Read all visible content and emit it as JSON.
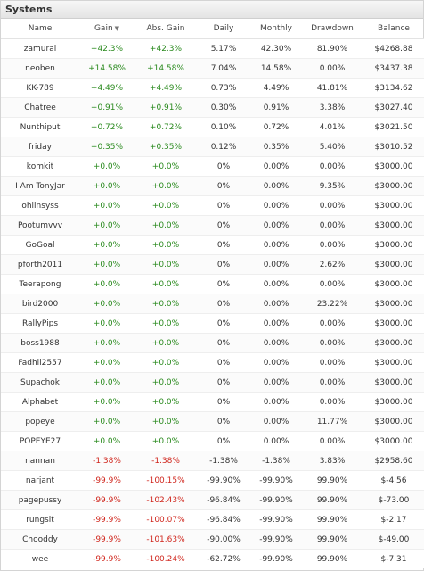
{
  "panel": {
    "title": "Systems"
  },
  "columns": {
    "name": "Name",
    "gain": "Gain",
    "abs_gain": "Abs. Gain",
    "daily": "Daily",
    "monthly": "Monthly",
    "drawdown": "Drawdown",
    "balance": "Balance"
  },
  "icons": {
    "sort": "sort-desc-triangle-icon"
  },
  "colors": {
    "positive": "#2a8a1e",
    "negative": "#d0261d",
    "neutral": "#333333"
  },
  "rows": [
    {
      "name": "zamurai",
      "gain": "+42.3%",
      "abs_gain": "+42.3%",
      "daily": "5.17%",
      "monthly": "42.30%",
      "drawdown": "81.90%",
      "balance": "$4268.88",
      "sign": "pos"
    },
    {
      "name": "neoben",
      "gain": "+14.58%",
      "abs_gain": "+14.58%",
      "daily": "7.04%",
      "monthly": "14.58%",
      "drawdown": "0.00%",
      "balance": "$3437.38",
      "sign": "pos"
    },
    {
      "name": "KK-789",
      "gain": "+4.49%",
      "abs_gain": "+4.49%",
      "daily": "0.73%",
      "monthly": "4.49%",
      "drawdown": "41.81%",
      "balance": "$3134.62",
      "sign": "pos"
    },
    {
      "name": "Chatree",
      "gain": "+0.91%",
      "abs_gain": "+0.91%",
      "daily": "0.30%",
      "monthly": "0.91%",
      "drawdown": "3.38%",
      "balance": "$3027.40",
      "sign": "pos"
    },
    {
      "name": "Nunthiput",
      "gain": "+0.72%",
      "abs_gain": "+0.72%",
      "daily": "0.10%",
      "monthly": "0.72%",
      "drawdown": "4.01%",
      "balance": "$3021.50",
      "sign": "pos"
    },
    {
      "name": "friday",
      "gain": "+0.35%",
      "abs_gain": "+0.35%",
      "daily": "0.12%",
      "monthly": "0.35%",
      "drawdown": "5.40%",
      "balance": "$3010.52",
      "sign": "pos"
    },
    {
      "name": "komkit",
      "gain": "+0.0%",
      "abs_gain": "+0.0%",
      "daily": "0%",
      "monthly": "0.00%",
      "drawdown": "0.00%",
      "balance": "$3000.00",
      "sign": "pos"
    },
    {
      "name": "I Am TonyJar",
      "gain": "+0.0%",
      "abs_gain": "+0.0%",
      "daily": "0%",
      "monthly": "0.00%",
      "drawdown": "9.35%",
      "balance": "$3000.00",
      "sign": "pos"
    },
    {
      "name": "ohlinsyss",
      "gain": "+0.0%",
      "abs_gain": "+0.0%",
      "daily": "0%",
      "monthly": "0.00%",
      "drawdown": "0.00%",
      "balance": "$3000.00",
      "sign": "pos"
    },
    {
      "name": "Pootumvvv",
      "gain": "+0.0%",
      "abs_gain": "+0.0%",
      "daily": "0%",
      "monthly": "0.00%",
      "drawdown": "0.00%",
      "balance": "$3000.00",
      "sign": "pos"
    },
    {
      "name": "GoGoal",
      "gain": "+0.0%",
      "abs_gain": "+0.0%",
      "daily": "0%",
      "monthly": "0.00%",
      "drawdown": "0.00%",
      "balance": "$3000.00",
      "sign": "pos"
    },
    {
      "name": "pforth2011",
      "gain": "+0.0%",
      "abs_gain": "+0.0%",
      "daily": "0%",
      "monthly": "0.00%",
      "drawdown": "2.62%",
      "balance": "$3000.00",
      "sign": "pos"
    },
    {
      "name": "Teerapong",
      "gain": "+0.0%",
      "abs_gain": "+0.0%",
      "daily": "0%",
      "monthly": "0.00%",
      "drawdown": "0.00%",
      "balance": "$3000.00",
      "sign": "pos"
    },
    {
      "name": "bird2000",
      "gain": "+0.0%",
      "abs_gain": "+0.0%",
      "daily": "0%",
      "monthly": "0.00%",
      "drawdown": "23.22%",
      "balance": "$3000.00",
      "sign": "pos"
    },
    {
      "name": "RallyPips",
      "gain": "+0.0%",
      "abs_gain": "+0.0%",
      "daily": "0%",
      "monthly": "0.00%",
      "drawdown": "0.00%",
      "balance": "$3000.00",
      "sign": "pos"
    },
    {
      "name": "boss1988",
      "gain": "+0.0%",
      "abs_gain": "+0.0%",
      "daily": "0%",
      "monthly": "0.00%",
      "drawdown": "0.00%",
      "balance": "$3000.00",
      "sign": "pos"
    },
    {
      "name": "Fadhil2557",
      "gain": "+0.0%",
      "abs_gain": "+0.0%",
      "daily": "0%",
      "monthly": "0.00%",
      "drawdown": "0.00%",
      "balance": "$3000.00",
      "sign": "pos"
    },
    {
      "name": "Supachok",
      "gain": "+0.0%",
      "abs_gain": "+0.0%",
      "daily": "0%",
      "monthly": "0.00%",
      "drawdown": "0.00%",
      "balance": "$3000.00",
      "sign": "pos"
    },
    {
      "name": "Alphabet",
      "gain": "+0.0%",
      "abs_gain": "+0.0%",
      "daily": "0%",
      "monthly": "0.00%",
      "drawdown": "0.00%",
      "balance": "$3000.00",
      "sign": "pos"
    },
    {
      "name": "popeye",
      "gain": "+0.0%",
      "abs_gain": "+0.0%",
      "daily": "0%",
      "monthly": "0.00%",
      "drawdown": "11.77%",
      "balance": "$3000.00",
      "sign": "pos"
    },
    {
      "name": "POPEYE27",
      "gain": "+0.0%",
      "abs_gain": "+0.0%",
      "daily": "0%",
      "monthly": "0.00%",
      "drawdown": "0.00%",
      "balance": "$3000.00",
      "sign": "pos"
    },
    {
      "name": "nannan",
      "gain": "-1.38%",
      "abs_gain": "-1.38%",
      "daily": "-1.38%",
      "monthly": "-1.38%",
      "drawdown": "3.83%",
      "balance": "$2958.60",
      "sign": "neg"
    },
    {
      "name": "narjant",
      "gain": "-99.9%",
      "abs_gain": "-100.15%",
      "daily": "-99.90%",
      "monthly": "-99.90%",
      "drawdown": "99.90%",
      "balance": "$-4.56",
      "sign": "neg"
    },
    {
      "name": "pagepussy",
      "gain": "-99.9%",
      "abs_gain": "-102.43%",
      "daily": "-96.84%",
      "monthly": "-99.90%",
      "drawdown": "99.90%",
      "balance": "$-73.00",
      "sign": "neg"
    },
    {
      "name": "rungsit",
      "gain": "-99.9%",
      "abs_gain": "-100.07%",
      "daily": "-96.84%",
      "monthly": "-99.90%",
      "drawdown": "99.90%",
      "balance": "$-2.17",
      "sign": "neg"
    },
    {
      "name": "Chooddy",
      "gain": "-99.9%",
      "abs_gain": "-101.63%",
      "daily": "-90.00%",
      "monthly": "-99.90%",
      "drawdown": "99.90%",
      "balance": "$-49.00",
      "sign": "neg"
    },
    {
      "name": "wee",
      "gain": "-99.9%",
      "abs_gain": "-100.24%",
      "daily": "-62.72%",
      "monthly": "-99.90%",
      "drawdown": "99.90%",
      "balance": "$-7.31",
      "sign": "neg"
    }
  ]
}
